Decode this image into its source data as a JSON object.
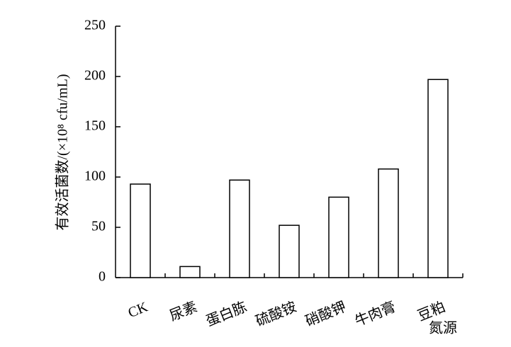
{
  "chart_data": {
    "type": "bar",
    "categories": [
      "CK",
      "尿素",
      "蛋白胨",
      "硫酸铵",
      "硝酸钾",
      "牛肉膏",
      "豆粕"
    ],
    "values": [
      93,
      11,
      97,
      52,
      80,
      108,
      197
    ],
    "color": "#ffffff",
    "y_label": "有效活菌数/(×10⁸ cfu/mL)",
    "x_label": "氮源",
    "ylim": [
      0,
      250
    ],
    "yticks": [
      0,
      50,
      100,
      150,
      200,
      250
    ]
  }
}
